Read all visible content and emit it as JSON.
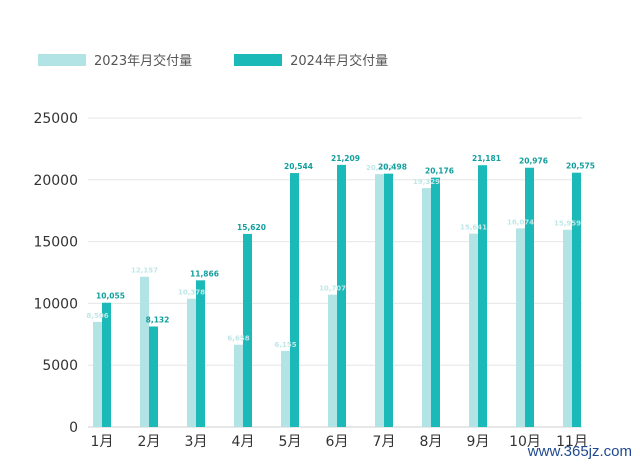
{
  "colors": {
    "series_2023": "#b3e4e5",
    "series_2024": "#1bb9b7",
    "grid": "#e6e6e6",
    "axis_text": "#333333",
    "label_2023": "#bfe7e8",
    "label_2024": "#139f9d"
  },
  "watermark": "www.365jz.com",
  "chart_data": {
    "type": "bar",
    "categories": [
      "1月",
      "2月",
      "3月",
      "4月",
      "5月",
      "6月",
      "7月",
      "8月",
      "9月",
      "10月",
      "11月"
    ],
    "series": [
      {
        "name": "2023年月交付量",
        "values": [
          8506,
          12157,
          10378,
          6658,
          6155,
          10707,
          20462,
          19329,
          15641,
          16074,
          15959
        ],
        "labels": [
          "8,506",
          "12,157",
          "10,378",
          "6,658",
          "6,155",
          "10,707",
          "20,462",
          "19,329",
          "15,641",
          "16,074",
          "15,959"
        ]
      },
      {
        "name": "2024年月交付量",
        "values": [
          10055,
          8132,
          11866,
          15620,
          20544,
          21209,
          20498,
          20176,
          21181,
          20976,
          20575
        ],
        "labels": [
          "10,055",
          "8,132",
          "11,866",
          "15,620",
          "20,544",
          "21,209",
          "20,498",
          "20,176",
          "21,181",
          "20,976",
          "20,575"
        ]
      }
    ],
    "ylim": [
      0,
      25000
    ],
    "yticks": [
      "0",
      "5000",
      "10000",
      "15000",
      "20000",
      "25000"
    ],
    "grid": true,
    "legend": "top-left"
  }
}
